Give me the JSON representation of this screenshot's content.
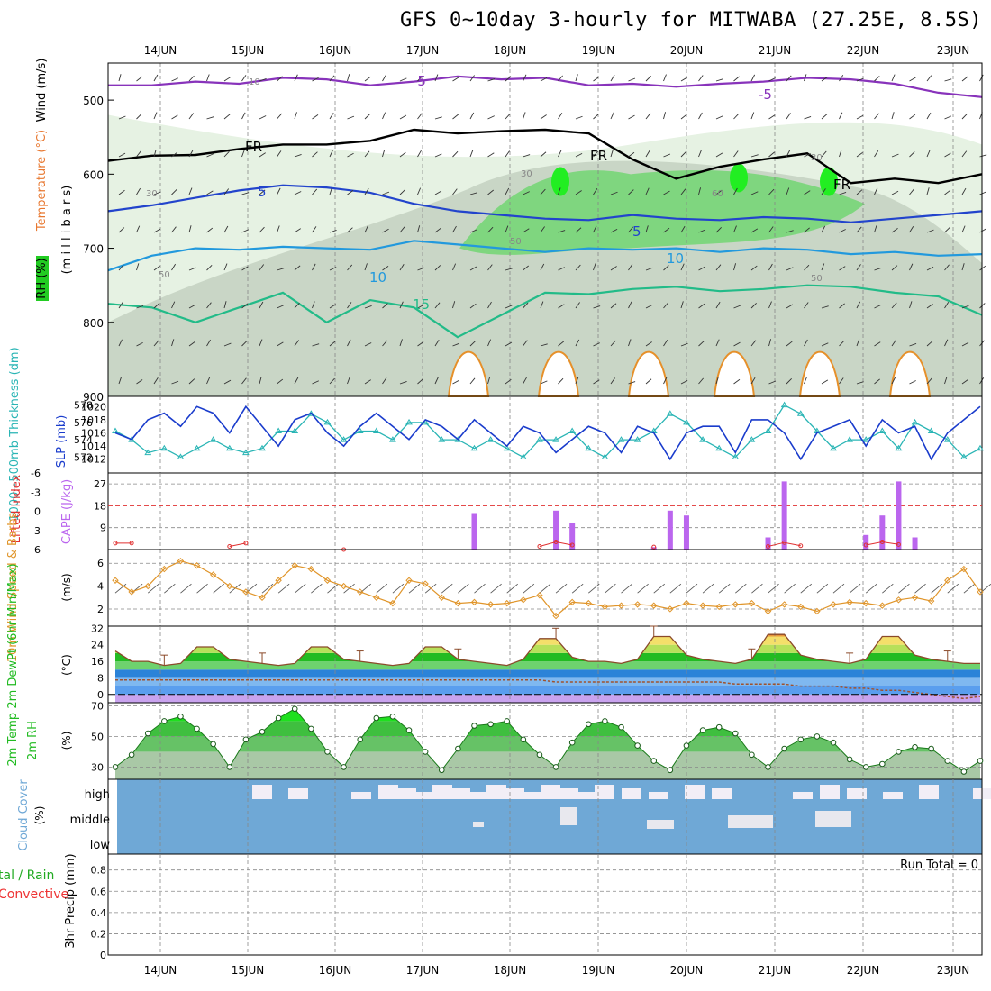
{
  "title": "GFS 0~10day 3-hourly for MITWABA (27.25E, 8.5S)",
  "dates": [
    "14JUN",
    "15JUN",
    "16JUN",
    "17JUN",
    "18JUN",
    "19JUN",
    "20JUN",
    "21JUN",
    "22JUN",
    "23JUN"
  ],
  "colors": {
    "grid": "#888888",
    "rh": "#22cc22",
    "temp_label": "#e87830",
    "wind_label": "#d04040",
    "slp": "#1a3ccc",
    "thickness": "#2ab5b5",
    "cape": "#bb66ee",
    "li": "#e03030",
    "wind10": "#e0952a",
    "rh2m": "#22bb22",
    "cloud": "#6fa8d6",
    "precip_total": "#22aa22",
    "precip_conv": "#ee3333"
  },
  "panels": {
    "upper": {
      "ylabel_rh": "RH (%)",
      "ylabel_temp": "Temperature (°C)",
      "ylabel_wind": "Wind (m/s)",
      "ylabel_unit": "(m i l l i b a r s)",
      "yticks": [
        "500",
        "600",
        "700",
        "800",
        "900"
      ],
      "contour_labels": [
        "-5",
        "-5",
        "FR",
        "FR",
        "FR",
        "5",
        "5",
        "10",
        "10",
        "15",
        "10",
        "30",
        "30",
        "50",
        "50",
        "50",
        "30",
        "60"
      ]
    },
    "thickness": {
      "ylabel_left": "1000~500mb Thickness (dm)",
      "ylabel_right": "SLP (mb)",
      "yticks_left": [
        "578",
        "576",
        "574",
        "572"
      ],
      "yticks_right": [
        "1020",
        "1018",
        "1016",
        "1014",
        "1012"
      ]
    },
    "cape": {
      "ylabel_left": "Lifted Index",
      "ylabel_right": "CAPE (J/kg)",
      "yticks_left": [
        "-6",
        "-3",
        "0",
        "3",
        "6"
      ],
      "yticks_right": [
        "27",
        "18",
        "9"
      ]
    },
    "wind10": {
      "ylabel": "10m Wind Speed & Barbs",
      "unit": "(m/s)",
      "yticks": [
        "6",
        "4",
        "2"
      ]
    },
    "temp2m": {
      "ylabel": "2m Temp 2m DewPt (6hr Min/Max)",
      "unit": "(°C)",
      "yticks": [
        "32",
        "24",
        "16",
        "8",
        "0"
      ]
    },
    "rh2m": {
      "ylabel": "2m RH",
      "unit": "(%)",
      "yticks": [
        "70",
        "50",
        "30"
      ]
    },
    "cloud": {
      "ylabel": "Cloud Cover",
      "unit": "(%)",
      "levels": [
        "high",
        "middle",
        "low"
      ]
    },
    "precip": {
      "ylabel_total": "tal / Rain",
      "ylabel_conv": "Convective",
      "ylabel": "3hr Precip (mm)",
      "run_total": "Run Total = 0",
      "yticks": [
        "0.8",
        "0.6",
        "0.4",
        "0.2",
        "0"
      ]
    }
  },
  "chart_data": {
    "type": "line",
    "x_dates": [
      "14JUN",
      "15JUN",
      "16JUN",
      "17JUN",
      "18JUN",
      "19JUN",
      "20JUN",
      "21JUN",
      "22JUN",
      "23JUN"
    ],
    "slp_mb": [
      1016,
      1015,
      1018,
      1019,
      1017,
      1020,
      1019,
      1016,
      1020,
      1017,
      1014,
      1018,
      1019,
      1016,
      1014,
      1017,
      1019,
      1017,
      1015,
      1018,
      1017,
      1015,
      1018,
      1016,
      1014,
      1017,
      1016,
      1013,
      1015,
      1017,
      1016,
      1013,
      1017,
      1016,
      1012,
      1016,
      1017,
      1017,
      1013,
      1018,
      1018,
      1016,
      1012,
      1016,
      1017,
      1018,
      1014,
      1018,
      1016,
      1017,
      1012,
      1016,
      1018,
      1020
    ],
    "thickness_dm": [
      575,
      574,
      572.5,
      573,
      572,
      573,
      574,
      573,
      572.5,
      573,
      575,
      575,
      577,
      576,
      574,
      575,
      575,
      574,
      576,
      576,
      574,
      574,
      573,
      574,
      573,
      572,
      574,
      574,
      575,
      573,
      572,
      574,
      574,
      575,
      577,
      576,
      574,
      573,
      572,
      574,
      575,
      578,
      577,
      575,
      573,
      574,
      574,
      575,
      573,
      576,
      575,
      574,
      572,
      573
    ],
    "cape_jkg": [
      0,
      0,
      0,
      0,
      0,
      0,
      0,
      0,
      0,
      0,
      0,
      0,
      0,
      0,
      0,
      0,
      0,
      0,
      0,
      0,
      0,
      0,
      15,
      0,
      0,
      0,
      0,
      16,
      11,
      0,
      0,
      0,
      0,
      1,
      16,
      14,
      0,
      0,
      0,
      0,
      5,
      28,
      0,
      0,
      0,
      0,
      6,
      14,
      28,
      5,
      0,
      0,
      0,
      0
    ],
    "lifted_index": [
      5,
      5,
      null,
      null,
      null,
      null,
      null,
      5.5,
      5,
      null,
      null,
      null,
      null,
      null,
      6,
      null,
      null,
      null,
      null,
      null,
      null,
      null,
      null,
      null,
      null,
      null,
      5.5,
      4.8,
      5.3,
      null,
      null,
      null,
      null,
      5.6,
      null,
      null,
      null,
      null,
      null,
      null,
      5.5,
      4.9,
      5.4,
      null,
      null,
      null,
      5.3,
      4.8,
      5.2,
      null,
      null,
      null,
      null,
      null
    ],
    "wind10_ms": [
      4.5,
      3.5,
      4,
      5.5,
      6.2,
      5.8,
      5,
      4,
      3.5,
      3,
      4.5,
      5.8,
      5.5,
      4.5,
      4,
      3.5,
      3,
      2.5,
      4.5,
      4.2,
      3,
      2.5,
      2.6,
      2.4,
      2.5,
      2.8,
      3.2,
      1.4,
      2.6,
      2.5,
      2.2,
      2.3,
      2.4,
      2.3,
      2,
      2.5,
      2.3,
      2.2,
      2.4,
      2.5,
      1.8,
      2.4,
      2.2,
      1.8,
      2.4,
      2.6,
      2.5,
      2.3,
      2.8,
      3,
      2.7,
      4.5,
      5.5,
      3.5
    ],
    "temp2m_c": [
      21,
      16,
      16,
      14,
      15,
      23,
      23,
      17,
      16,
      15,
      14,
      15,
      23,
      23,
      17,
      16,
      15,
      14,
      15,
      23,
      23,
      17,
      16,
      15,
      14,
      17,
      27,
      27,
      18,
      16,
      16,
      15,
      17,
      28,
      28,
      19,
      17,
      16,
      15,
      17,
      29,
      29,
      19,
      17,
      16,
      15,
      17,
      28,
      28,
      19,
      17,
      16,
      15,
      15
    ],
    "dewpt2m_c": [
      7,
      7,
      7,
      7,
      7,
      7,
      7,
      7,
      7,
      7,
      7,
      7,
      7,
      7,
      7,
      7,
      7,
      7,
      7,
      7,
      7,
      7,
      7,
      7,
      7,
      7,
      7,
      6,
      6,
      6,
      6,
      6,
      6,
      6,
      6,
      6,
      6,
      6,
      5,
      5,
      5,
      5,
      4,
      4,
      4,
      3,
      3,
      2,
      2,
      1,
      0,
      -1,
      -2,
      -1
    ],
    "rh2m_pct": [
      30,
      38,
      52,
      60,
      63,
      55,
      45,
      30,
      48,
      53,
      62,
      68,
      55,
      40,
      30,
      48,
      62,
      63,
      54,
      40,
      28,
      42,
      57,
      58,
      60,
      48,
      38,
      30,
      46,
      58,
      60,
      56,
      44,
      34,
      28,
      44,
      54,
      56,
      52,
      38,
      30,
      42,
      48,
      50,
      46,
      35,
      30,
      32,
      40,
      43,
      42,
      34,
      27,
      34
    ],
    "precip_mm": [
      0,
      0,
      0,
      0,
      0,
      0,
      0,
      0,
      0,
      0
    ]
  }
}
